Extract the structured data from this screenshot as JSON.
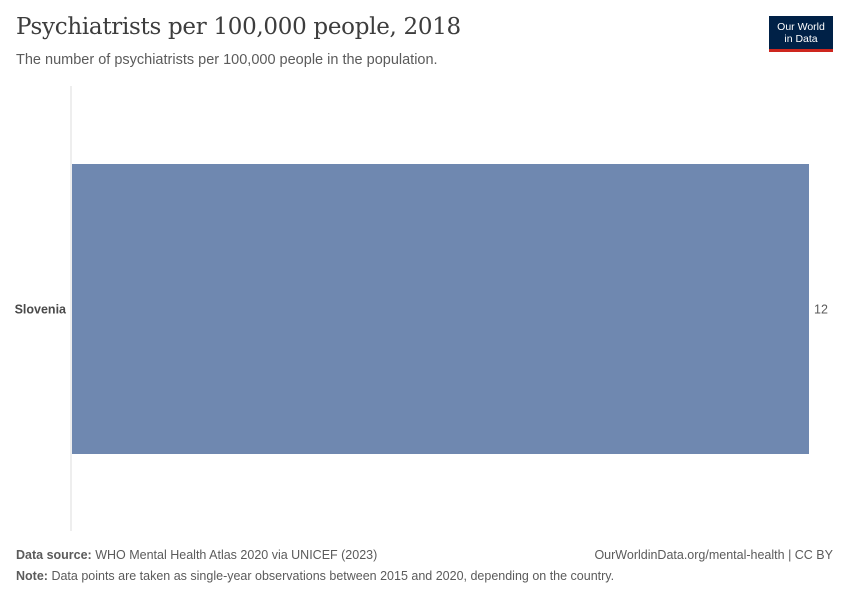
{
  "header": {
    "title": "Psychiatrists per 100,000 people, 2018",
    "subtitle": "The number of psychiatrists per 100,000 people in the population."
  },
  "logo": {
    "line1": "Our World",
    "line2": "in Data",
    "colors": {
      "background": "#002147",
      "accent": "#ce261e"
    }
  },
  "chart_data": {
    "type": "bar",
    "orientation": "horizontal",
    "categories": [
      "Slovenia"
    ],
    "values": [
      12
    ],
    "value_labels": [
      "12"
    ],
    "xlim": [
      0,
      12
    ],
    "grid": false,
    "bar_color": "#6f88b0"
  },
  "footer": {
    "source_label": "Data source:",
    "source_text": "WHO Mental Health Atlas 2020 via UNICEF (2023)",
    "url": "OurWorldinData.org/mental-health | CC BY",
    "note_label": "Note:",
    "note_text": "Data points are taken as single-year observations between 2015 and 2020, depending on the country."
  }
}
